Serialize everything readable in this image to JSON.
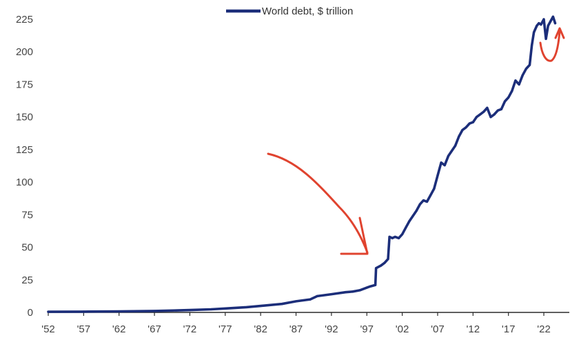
{
  "chart_data": {
    "type": "line",
    "title": "",
    "xlabel": "",
    "ylabel": "",
    "legend": {
      "position": "top-center",
      "label": "World debt, $ trillion"
    },
    "series": [
      {
        "name": "World debt, $ trillion",
        "color": "#1c2e7a",
        "x": [
          1952,
          1957,
          1962,
          1967,
          1972,
          1975,
          1977,
          1980,
          1982,
          1985,
          1987,
          1989,
          1990,
          1992,
          1994,
          1995,
          1996,
          1997,
          1997.5,
          1998.2,
          1998.3,
          1999,
          1999.5,
          2000,
          2000.2,
          2000.6,
          2001,
          2001.5,
          2002,
          2002.5,
          2003,
          2003.5,
          2004,
          2004.5,
          2005,
          2005.5,
          2006,
          2006.5,
          2007,
          2007.5,
          2008,
          2008.5,
          2009,
          2009.5,
          2010,
          2010.5,
          2011,
          2011.5,
          2012,
          2012.5,
          2013,
          2013.5,
          2014,
          2014.5,
          2015,
          2015.5,
          2016,
          2016.5,
          2017,
          2017.5,
          2018,
          2018.5,
          2019,
          2019.5,
          2020,
          2020.3,
          2020.6,
          2021,
          2021.3,
          2021.6,
          2022,
          2022.3,
          2022.6,
          2023,
          2023.3,
          2023.6
        ],
        "values": [
          0.5,
          0.6,
          0.8,
          1.1,
          1.8,
          2.4,
          3,
          4,
          5,
          6.5,
          8.5,
          10,
          12.5,
          14,
          15.5,
          16,
          17,
          19,
          20,
          21,
          34,
          36,
          38,
          41,
          58,
          57,
          58,
          57,
          60,
          65,
          70,
          74,
          78,
          83,
          86,
          85,
          90,
          95,
          105,
          115,
          113,
          120,
          124,
          128,
          135,
          140,
          142,
          145,
          146,
          150,
          152,
          154,
          157,
          150,
          152,
          155,
          156,
          162,
          165,
          170,
          178,
          175,
          182,
          187,
          190,
          205,
          215,
          220,
          222,
          221,
          225,
          210,
          220,
          224,
          227,
          222
        ]
      }
    ],
    "xticks": [
      {
        "value": 1952,
        "label": "'52"
      },
      {
        "value": 1957,
        "label": "'57"
      },
      {
        "value": 1962,
        "label": "'62"
      },
      {
        "value": 1967,
        "label": "'67"
      },
      {
        "value": 1972,
        "label": "'72"
      },
      {
        "value": 1977,
        "label": "'77"
      },
      {
        "value": 1982,
        "label": "'82"
      },
      {
        "value": 1987,
        "label": "'87"
      },
      {
        "value": 1992,
        "label": "'92"
      },
      {
        "value": 1997,
        "label": "'97"
      },
      {
        "value": 2002,
        "label": "'02"
      },
      {
        "value": 2007,
        "label": "'07"
      },
      {
        "value": 2012,
        "label": "'12"
      },
      {
        "value": 2017,
        "label": "'17"
      },
      {
        "value": 2022,
        "label": "'22"
      }
    ],
    "yticks": [
      0,
      25,
      50,
      75,
      100,
      125,
      150,
      175,
      200,
      225
    ],
    "xlim": [
      1952,
      2025.6
    ],
    "ylim": [
      0,
      225
    ],
    "grid": false,
    "annotations": [
      {
        "type": "hand-drawn-arrow",
        "color": "#e0432f",
        "points_to": {
          "x": 1997,
          "y": 45
        }
      },
      {
        "type": "hand-drawn-arrow",
        "color": "#e0432f",
        "points_to": {
          "x": 2024,
          "y": 218
        }
      }
    ]
  },
  "colors": {
    "series": "#1c2e7a",
    "axis": "#2a2a2a",
    "tick_text": "#444444",
    "annotation": "#e0432f"
  }
}
